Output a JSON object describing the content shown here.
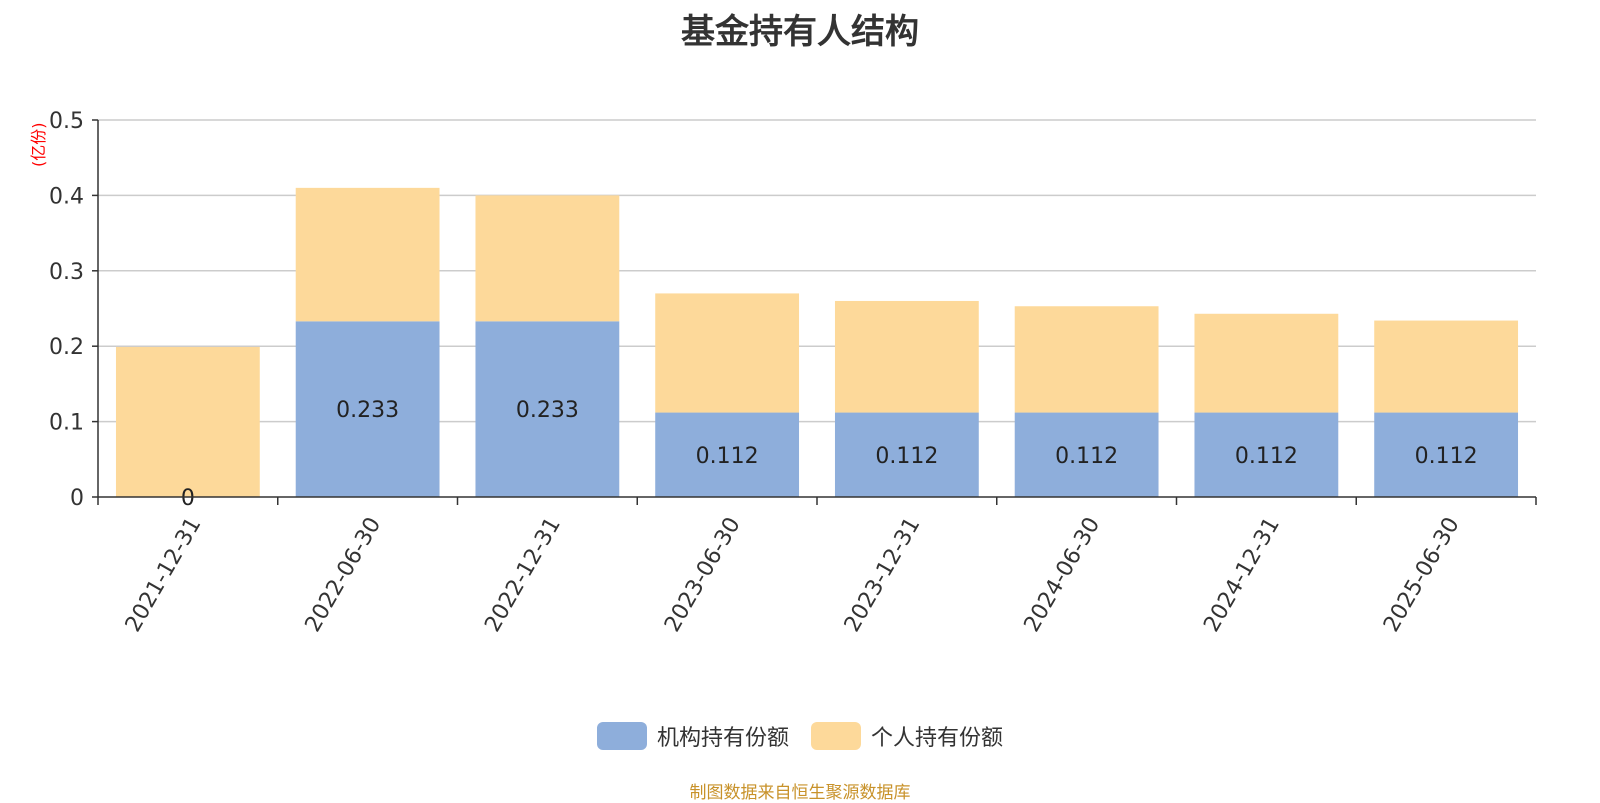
{
  "chart_data": {
    "type": "bar",
    "stacked": true,
    "title": "基金持有人结构",
    "ylabel": "(亿份)",
    "ylim": [
      0,
      0.5
    ],
    "yticks": [
      "0",
      "0.1",
      "0.2",
      "0.3",
      "0.4",
      "0.5"
    ],
    "categories": [
      "2021-12-31",
      "2022-06-30",
      "2022-12-31",
      "2023-06-30",
      "2023-12-31",
      "2024-06-30",
      "2024-12-31",
      "2025-06-30"
    ],
    "series": [
      {
        "name": "机构持有份额",
        "color": "#8eaedb",
        "values": [
          0,
          0.233,
          0.233,
          0.112,
          0.112,
          0.112,
          0.112,
          0.112
        ],
        "labels": [
          "0",
          "0.233",
          "0.233",
          "0.112",
          "0.112",
          "0.112",
          "0.112",
          "0.112"
        ]
      },
      {
        "name": "个人持有份额",
        "color": "#fdd99a",
        "values": [
          0.199,
          0.177,
          0.167,
          0.158,
          0.148,
          0.141,
          0.131,
          0.122
        ]
      }
    ],
    "grid": true,
    "legend_position": "bottom"
  },
  "footer": {
    "source": "制图数据来自恒生聚源数据库"
  }
}
